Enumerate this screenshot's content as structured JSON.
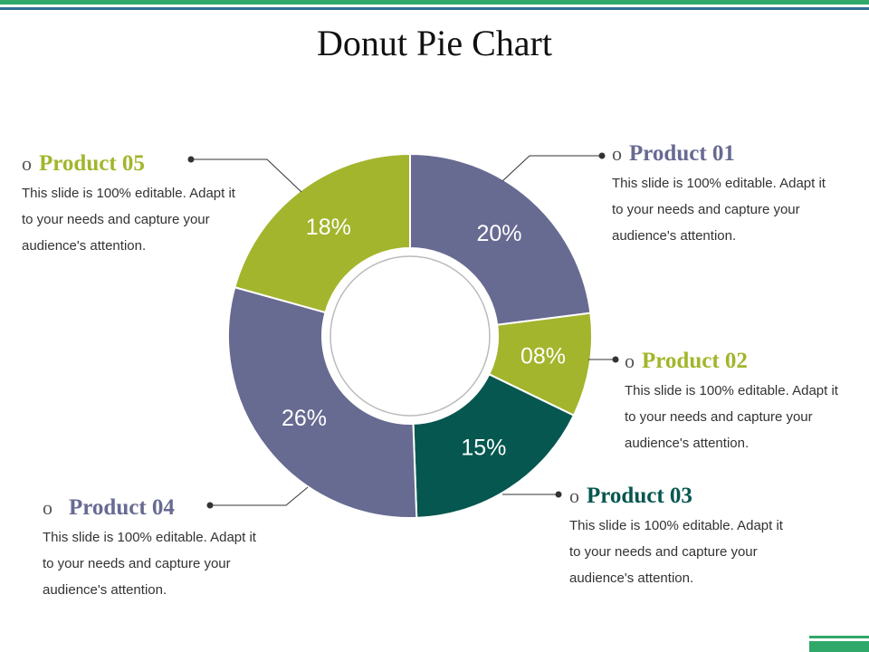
{
  "slide": {
    "title": "Donut Pie Chart",
    "colors": {
      "top_bar_green": "#2fa86a",
      "top_bar_blue": "#2f6f9a"
    }
  },
  "chart_data": {
    "type": "pie",
    "donut": true,
    "categories": [
      "Product 01",
      "Product 02",
      "Product 03",
      "Product 04",
      "Product 05"
    ],
    "values": [
      20,
      8,
      15,
      26,
      18
    ],
    "labels": [
      "20%",
      "08%",
      "15%",
      "26%",
      "18%"
    ],
    "colors": [
      "#676a91",
      "#a3b52c",
      "#05574f",
      "#676a91",
      "#a3b52c"
    ],
    "title": "Donut Pie Chart"
  },
  "callouts": [
    {
      "name": "Product 01",
      "color": "#676a91",
      "bullet": "o",
      "desc": "This slide is 100% editable. Adapt it to your needs and capture your audience's attention."
    },
    {
      "name": "Product 02",
      "color": "#a3b52c",
      "bullet": "o",
      "desc": "This slide is 100% editable. Adapt it to your needs and capture your audience's attention."
    },
    {
      "name": "Product 03",
      "color": "#05574f",
      "bullet": "o",
      "desc": "This slide is 100% editable. Adapt it to your needs and capture your audience's attention."
    },
    {
      "name": "Product 04",
      "color": "#676a91",
      "bullet": "o",
      "desc": "This slide is 100% editable. Adapt it to your needs and capture your audience's attention."
    },
    {
      "name": "Product 05",
      "color": "#a3b52c",
      "bullet": "o",
      "desc": "This slide is 100% editable. Adapt it to your needs and capture your audience's attention."
    }
  ]
}
